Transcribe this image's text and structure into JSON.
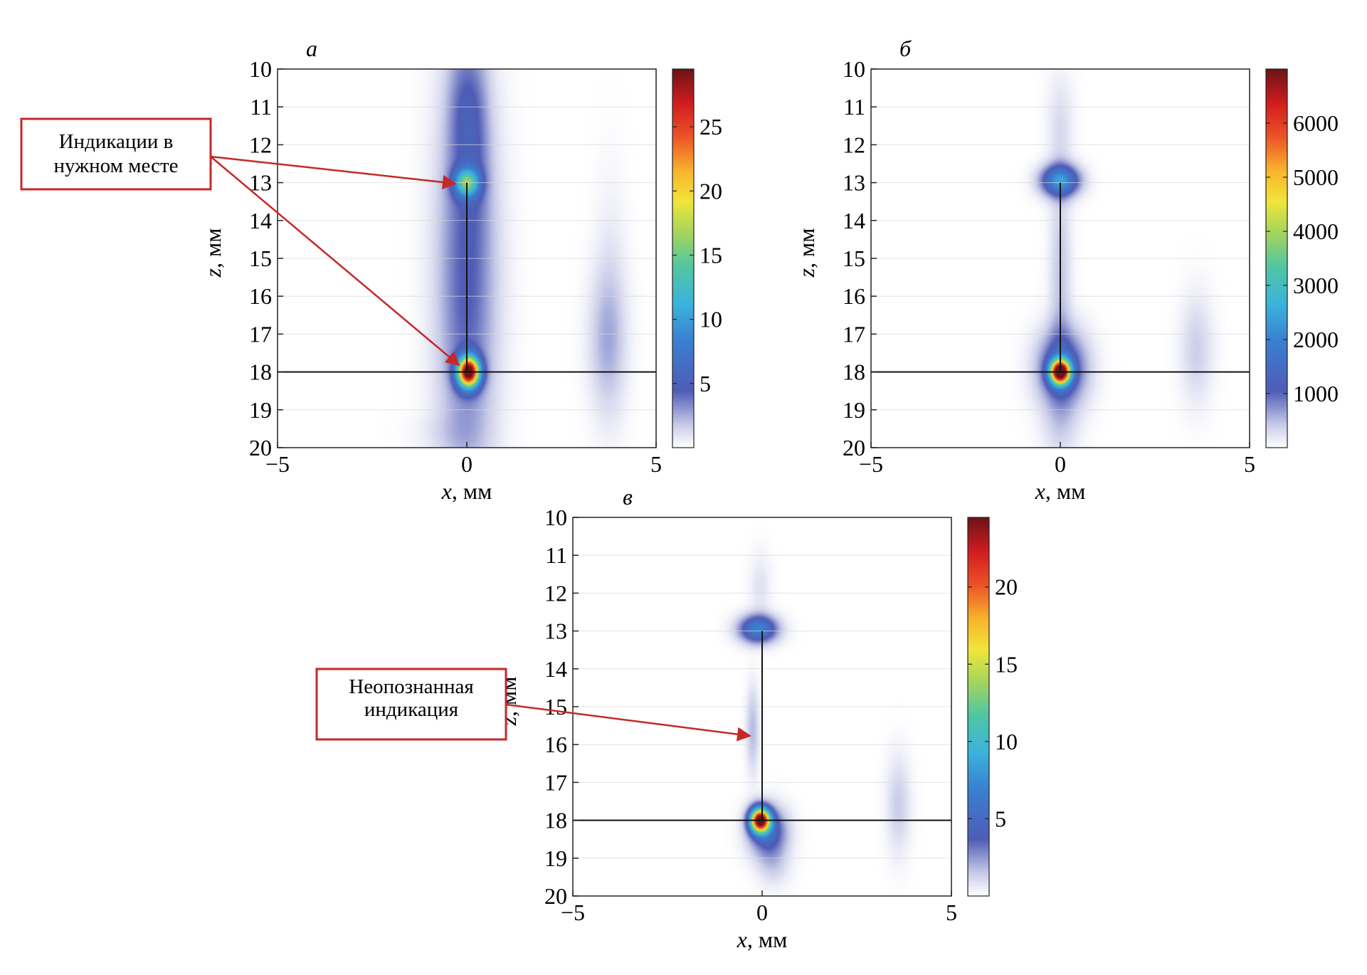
{
  "annotations": [
    {
      "id": "a1",
      "lines": [
        "Индикации в",
        "нужном месте"
      ]
    },
    {
      "id": "a2",
      "lines": [
        "Неопознанная",
        "индикация"
      ]
    }
  ],
  "colors": {
    "frame": "#222222",
    "gridline": "#d8d8d8",
    "guide": "#111111",
    "callout": "#c62828"
  },
  "chart_data": [
    {
      "type": "heatmap",
      "panel": "а",
      "title": "",
      "xlabel_var": "x",
      "xlabel_unit": ", мм",
      "ylabel_var": "z",
      "ylabel_unit": ", мм",
      "xlim": [
        -5,
        5
      ],
      "ylim": [
        10,
        20
      ],
      "y_inverted": true,
      "xticks": [
        "−5",
        "0",
        "5"
      ],
      "yticks": [
        "10",
        "11",
        "12",
        "13",
        "14",
        "15",
        "16",
        "17",
        "18",
        "19",
        "20"
      ],
      "colorbar": {
        "max": 29.5,
        "ticks": [
          {
            "v": 5,
            "label": "5"
          },
          {
            "v": 10,
            "label": "10"
          },
          {
            "v": 15,
            "label": "15"
          },
          {
            "v": 20,
            "label": "20"
          },
          {
            "v": 25,
            "label": "25"
          }
        ]
      },
      "horizontal_line_z": 18,
      "vertical_segment": {
        "x": 0,
        "z1": 13,
        "z2": 18
      },
      "blobs": [
        {
          "x": 0.05,
          "z": 18.0,
          "sx": 0.2,
          "sz": 0.28,
          "peak": 29.5
        },
        {
          "x": 0.0,
          "z": 13.0,
          "sx": 0.22,
          "sz": 0.25,
          "peak": 12
        },
        {
          "x": 0.0,
          "z": 15.5,
          "sx": 0.55,
          "sz": 3.8,
          "peak": 4.5
        },
        {
          "x": -0.1,
          "z": 11.0,
          "sx": 0.3,
          "sz": 1.4,
          "peak": 2.2
        },
        {
          "x": 0.3,
          "z": 11.5,
          "sx": 0.25,
          "sz": 1.6,
          "peak": 1.4
        },
        {
          "x": 3.7,
          "z": 17.2,
          "sx": 0.35,
          "sz": 1.3,
          "peak": 2.0
        },
        {
          "x": 3.8,
          "z": 16.0,
          "sx": 0.3,
          "sz": 2.2,
          "peak": 0.8
        },
        {
          "x": -0.6,
          "z": 19.6,
          "sx": 0.7,
          "sz": 0.35,
          "peak": 0.5
        }
      ]
    },
    {
      "type": "heatmap",
      "panel": "б",
      "title": "",
      "xlabel_var": "x",
      "xlabel_unit": ", мм",
      "ylabel_var": "z",
      "ylabel_unit": ", мм",
      "xlim": [
        -5,
        5
      ],
      "ylim": [
        10,
        20
      ],
      "y_inverted": true,
      "xticks": [
        "−5",
        "0",
        "5"
      ],
      "yticks": [
        "10",
        "11",
        "12",
        "13",
        "14",
        "15",
        "16",
        "17",
        "18",
        "19",
        "20"
      ],
      "colorbar": {
        "max": 7000,
        "ticks": [
          {
            "v": 1000,
            "label": "1000"
          },
          {
            "v": 2000,
            "label": "2000"
          },
          {
            "v": 3000,
            "label": "3000"
          },
          {
            "v": 4000,
            "label": "4000"
          },
          {
            "v": 5000,
            "label": "5000"
          },
          {
            "v": 6000,
            "label": "6000"
          }
        ]
      },
      "horizontal_line_z": 18,
      "vertical_segment": {
        "x": 0,
        "z1": 13,
        "z2": 18
      },
      "blobs": [
        {
          "x": 0.0,
          "z": 18.0,
          "sx": 0.18,
          "sz": 0.22,
          "peak": 7000
        },
        {
          "x": 0.05,
          "z": 17.9,
          "sx": 0.45,
          "sz": 0.7,
          "peak": 1500
        },
        {
          "x": 0.0,
          "z": 12.95,
          "sx": 0.35,
          "sz": 0.28,
          "peak": 2200
        },
        {
          "x": 0.0,
          "z": 15.5,
          "sx": 0.2,
          "sz": 1.9,
          "peak": 450
        },
        {
          "x": 0.0,
          "z": 11.5,
          "sx": 0.25,
          "sz": 1.0,
          "peak": 250
        },
        {
          "x": 0.0,
          "z": 19.5,
          "sx": 0.35,
          "sz": 0.6,
          "peak": 300
        },
        {
          "x": 3.6,
          "z": 17.4,
          "sx": 0.3,
          "sz": 1.0,
          "peak": 380
        }
      ]
    },
    {
      "type": "heatmap",
      "panel": "в",
      "title": "",
      "xlabel_var": "x",
      "xlabel_unit": ", мм",
      "ylabel_var": "z",
      "ylabel_unit": ", мм",
      "xlim": [
        -5,
        5
      ],
      "ylim": [
        10,
        20
      ],
      "y_inverted": true,
      "xticks": [
        "−5",
        "0",
        "5"
      ],
      "yticks": [
        "10",
        "11",
        "12",
        "13",
        "14",
        "15",
        "16",
        "17",
        "18",
        "19",
        "20"
      ],
      "colorbar": {
        "max": 24.5,
        "ticks": [
          {
            "v": 5,
            "label": "5"
          },
          {
            "v": 10,
            "label": "10"
          },
          {
            "v": 15,
            "label": "15"
          },
          {
            "v": 20,
            "label": "20"
          }
        ]
      },
      "horizontal_line_z": 18,
      "vertical_segment": {
        "x": 0,
        "z1": 13,
        "z2": 18
      },
      "blobs": [
        {
          "x": -0.05,
          "z": 18.0,
          "sx": 0.18,
          "sz": 0.22,
          "peak": 24.5
        },
        {
          "x": 0.15,
          "z": 18.3,
          "sx": 0.35,
          "sz": 0.45,
          "peak": 5
        },
        {
          "x": -0.1,
          "z": 12.95,
          "sx": 0.35,
          "sz": 0.25,
          "peak": 7
        },
        {
          "x": -0.25,
          "z": 15.6,
          "sx": 0.12,
          "sz": 0.8,
          "peak": 1.8
        },
        {
          "x": -0.05,
          "z": 11.8,
          "sx": 0.2,
          "sz": 0.6,
          "peak": 0.8
        },
        {
          "x": 3.6,
          "z": 17.6,
          "sx": 0.22,
          "sz": 0.9,
          "peak": 1.4
        },
        {
          "x": 0.3,
          "z": 19.2,
          "sx": 0.3,
          "sz": 0.4,
          "peak": 1.2
        }
      ]
    }
  ]
}
